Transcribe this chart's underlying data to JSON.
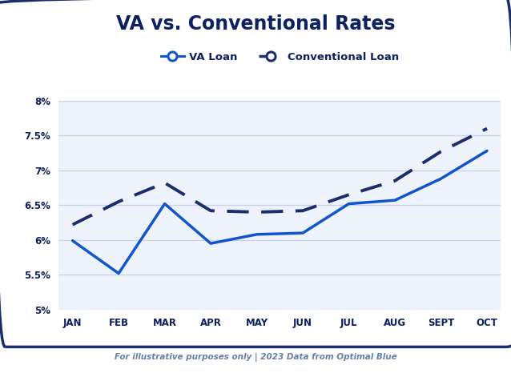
{
  "title": "VA vs. Conventional Rates",
  "months": [
    "JAN",
    "FEB",
    "MAR",
    "APR",
    "MAY",
    "JUN",
    "JUL",
    "AUG",
    "SEPT",
    "OCT"
  ],
  "va_loan": [
    5.99,
    5.52,
    6.52,
    5.95,
    6.08,
    6.1,
    6.52,
    6.57,
    6.88,
    7.28
  ],
  "conventional_loan": [
    6.22,
    6.55,
    6.82,
    6.42,
    6.4,
    6.42,
    6.65,
    6.85,
    7.27,
    7.6
  ],
  "line_color_va": "#1155cc",
  "line_color_conv": "#1a2e6e",
  "ylim_min": 5.0,
  "ylim_max": 8.0,
  "yticks": [
    5.0,
    5.5,
    6.0,
    6.5,
    7.0,
    7.5,
    8.0
  ],
  "ytick_labels": [
    "5%",
    "5.5%",
    "6%",
    "6.5%",
    "7%",
    "7.5%",
    "8%"
  ],
  "background_color": "#ffffff",
  "chart_bg_color": "#eef2fb",
  "grid_color": "#c5d3ee",
  "footer_text": "For illustrative purposes only | 2023 Data from Optimal Blue",
  "footer_color": "#6680aa",
  "footer_bg": "#1a2e6e",
  "border_color": "#1a2e6e",
  "title_color": "#0d2060",
  "label_color": "#0d2060"
}
